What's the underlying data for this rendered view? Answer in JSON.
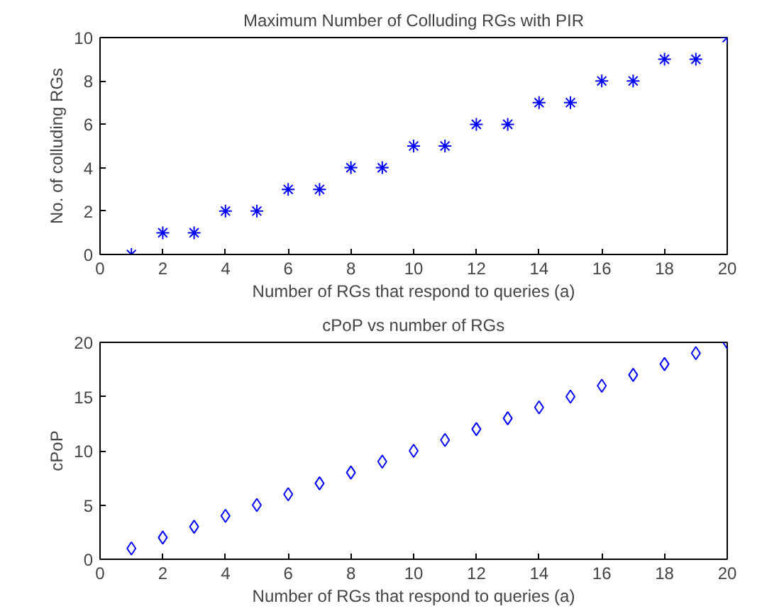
{
  "chart_data": [
    {
      "type": "scatter",
      "title": "Maximum Number of Colluding RGs with PIR",
      "xlabel": "Number of RGs that respond to queries (a)",
      "ylabel": "No. of colluding RGs",
      "x": [
        1,
        2,
        3,
        4,
        5,
        6,
        7,
        8,
        9,
        10,
        11,
        12,
        13,
        14,
        15,
        16,
        17,
        18,
        19,
        20
      ],
      "series": [
        {
          "color": "#0000ff",
          "values": [
            0,
            1,
            1,
            2,
            2,
            3,
            3,
            4,
            4,
            5,
            5,
            6,
            6,
            7,
            7,
            8,
            8,
            9,
            9,
            10
          ]
        }
      ],
      "marker": "cross",
      "xlim": [
        0,
        20
      ],
      "ylim": [
        0,
        10
      ],
      "xticks": [
        0,
        2,
        4,
        6,
        8,
        10,
        12,
        14,
        16,
        18,
        20
      ],
      "yticks": [
        0,
        2,
        4,
        6,
        8,
        10
      ]
    },
    {
      "type": "scatter",
      "title": "cPoP vs number of RGs",
      "xlabel": "Number of RGs that respond to queries (a)",
      "ylabel": "cPoP",
      "x": [
        1,
        2,
        3,
        4,
        5,
        6,
        7,
        8,
        9,
        10,
        11,
        12,
        13,
        14,
        15,
        16,
        17,
        18,
        19,
        20
      ],
      "series": [
        {
          "color": "#0000ff",
          "values": [
            1,
            2,
            3,
            4,
            5,
            6,
            7,
            8,
            9,
            10,
            11,
            12,
            13,
            14,
            15,
            16,
            17,
            18,
            19,
            20
          ]
        }
      ],
      "marker": "diamond",
      "xlim": [
        0,
        20
      ],
      "ylim": [
        0,
        20
      ],
      "xticks": [
        0,
        2,
        4,
        6,
        8,
        10,
        12,
        14,
        16,
        18,
        20
      ],
      "yticks": [
        0,
        5,
        10,
        15,
        20
      ]
    }
  ]
}
